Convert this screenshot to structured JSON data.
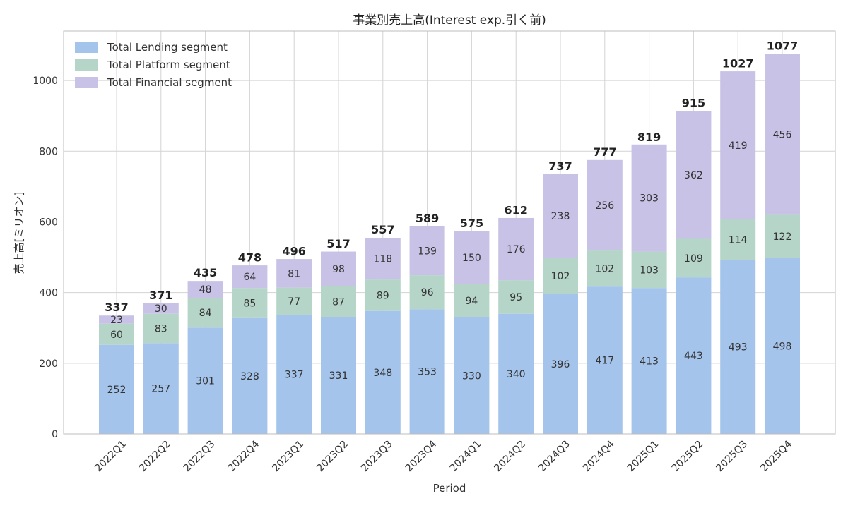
{
  "chart_data": {
    "type": "bar",
    "stacked": true,
    "title": "事業別売上高(Interest exp.引く前)",
    "xlabel": "Period",
    "ylabel": "売上高[ミリオン]",
    "ylim": [
      0,
      1140
    ],
    "yticks": [
      0,
      200,
      400,
      600,
      800,
      1000
    ],
    "grid": true,
    "legend_position": "top-left",
    "categories": [
      "2022Q1",
      "2022Q2",
      "2022Q3",
      "2022Q4",
      "2023Q1",
      "2023Q2",
      "2023Q3",
      "2023Q4",
      "2024Q1",
      "2024Q2",
      "2024Q3",
      "2024Q4",
      "2025Q1",
      "2025Q2",
      "2025Q3",
      "2025Q4"
    ],
    "series": [
      {
        "name": "Total Lending segment",
        "color": "#a4c4ec",
        "values": [
          252,
          257,
          301,
          328,
          337,
          331,
          348,
          353,
          330,
          340,
          396,
          417,
          413,
          443,
          493,
          498
        ]
      },
      {
        "name": "Total Platform segment",
        "color": "#b5d5c9",
        "values": [
          60,
          83,
          84,
          85,
          77,
          87,
          89,
          96,
          94,
          95,
          102,
          102,
          103,
          109,
          114,
          122
        ]
      },
      {
        "name": "Total Financial segment",
        "color": "#c8c3e6",
        "values": [
          23,
          30,
          48,
          64,
          81,
          98,
          118,
          139,
          150,
          176,
          238,
          256,
          303,
          362,
          419,
          456
        ]
      }
    ],
    "totals": [
      337,
      371,
      435,
      478,
      496,
      517,
      557,
      589,
      575,
      612,
      737,
      777,
      819,
      915,
      1027,
      1077
    ]
  }
}
